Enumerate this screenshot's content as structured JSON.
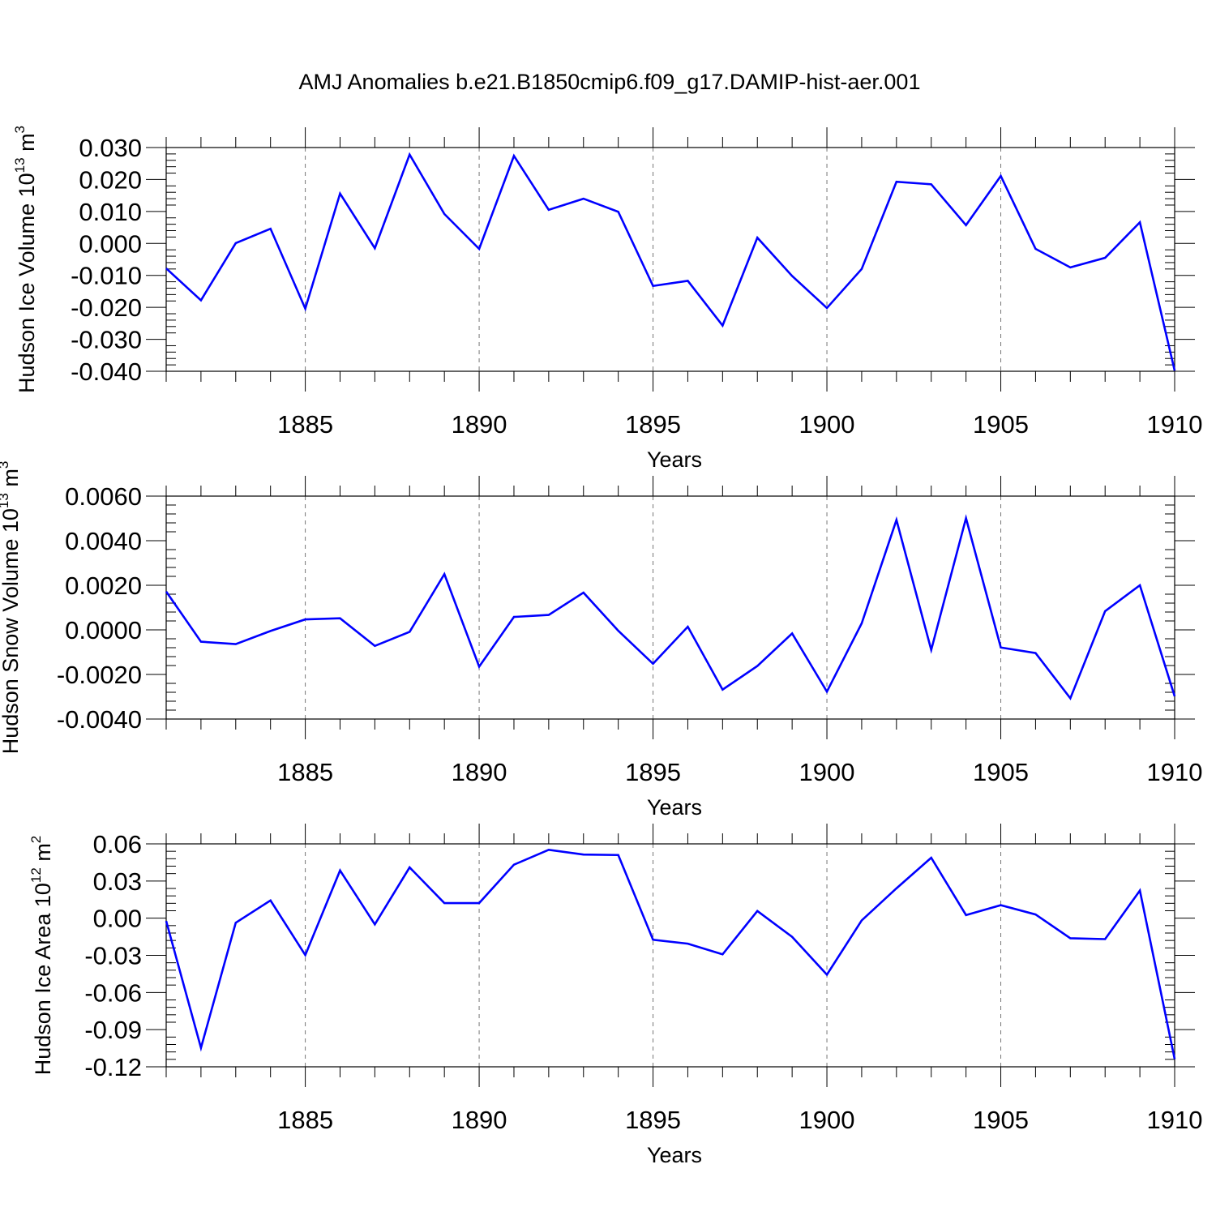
{
  "title": "AMJ Anomalies b.e21.B1850cmip6.f09_g17.DAMIP-hist-aer.001",
  "chart_data": [
    {
      "type": "line",
      "ylabel": {
        "text": "Hudson Ice Volume 10",
        "exp": "13",
        "unit": " m",
        "unit_exp": "3"
      },
      "xlabel": "Years",
      "xlim": [
        1881,
        1910
      ],
      "ylim": [
        -0.04,
        0.03
      ],
      "yticks": [
        "0.030",
        "0.020",
        "0.010",
        "0.000",
        "-0.010",
        "-0.020",
        "-0.030",
        "-0.040"
      ],
      "ytick_values": [
        0.03,
        0.02,
        0.01,
        0.0,
        -0.01,
        -0.02,
        -0.03,
        -0.04
      ],
      "xticks": [
        "1885",
        "1890",
        "1895",
        "1900",
        "1905",
        "1910"
      ],
      "xtick_values": [
        1885,
        1890,
        1895,
        1900,
        1905,
        1910
      ],
      "grid_x": [
        1885,
        1890,
        1895,
        1900,
        1905
      ],
      "series": [
        {
          "name": "Hudson Ice Volume",
          "color": "#0000ff",
          "x": [
            1881,
            1882,
            1883,
            1884,
            1885,
            1886,
            1887,
            1888,
            1889,
            1890,
            1891,
            1892,
            1893,
            1894,
            1895,
            1896,
            1897,
            1898,
            1899,
            1900,
            1901,
            1902,
            1903,
            1904,
            1905,
            1906,
            1907,
            1908,
            1909,
            1910
          ],
          "values": [
            -0.0078,
            -0.0178,
            0.0001,
            0.0046,
            -0.0204,
            0.0156,
            -0.0015,
            0.0278,
            0.0092,
            -0.0017,
            0.0274,
            0.0105,
            0.014,
            0.0099,
            -0.0133,
            -0.0117,
            -0.0257,
            0.0018,
            -0.0102,
            -0.0202,
            -0.008,
            0.0193,
            0.0185,
            0.0057,
            0.0211,
            -0.0017,
            -0.0075,
            -0.0045,
            0.0066,
            -0.0398
          ]
        }
      ]
    },
    {
      "type": "line",
      "ylabel": {
        "text": "Hudson Snow Volume 10",
        "exp": "13",
        "unit": " m",
        "unit_exp": "3"
      },
      "xlabel": "Years",
      "xlim": [
        1881,
        1910
      ],
      "ylim": [
        -0.004,
        0.006
      ],
      "yticks": [
        "0.0060",
        "0.0040",
        "0.0020",
        "0.0000",
        "-0.0020",
        "-0.0040"
      ],
      "ytick_values": [
        0.006,
        0.004,
        0.002,
        0.0,
        -0.002,
        -0.004
      ],
      "xticks": [
        "1885",
        "1890",
        "1895",
        "1900",
        "1905",
        "1910"
      ],
      "xtick_values": [
        1885,
        1890,
        1895,
        1900,
        1905,
        1910
      ],
      "grid_x": [
        1885,
        1890,
        1895,
        1900,
        1905
      ],
      "series": [
        {
          "name": "Hudson Snow Volume",
          "color": "#0000ff",
          "x": [
            1881,
            1882,
            1883,
            1884,
            1885,
            1886,
            1887,
            1888,
            1889,
            1890,
            1891,
            1892,
            1893,
            1894,
            1895,
            1896,
            1897,
            1898,
            1899,
            1900,
            1901,
            1902,
            1903,
            1904,
            1905,
            1906,
            1907,
            1908,
            1909,
            1910
          ],
          "values": [
            0.00172,
            -0.00053,
            -0.00064,
            -5e-05,
            0.00047,
            0.00052,
            -0.00072,
            -9e-05,
            0.0025,
            -0.00165,
            0.00058,
            0.00067,
            0.00167,
            -4e-05,
            -0.00152,
            0.00014,
            -0.00268,
            -0.00162,
            -0.00016,
            -0.00277,
            0.00029,
            0.00493,
            -0.0009,
            0.00501,
            -0.00079,
            -0.00104,
            -0.00307,
            0.00084,
            0.002,
            -0.00298
          ]
        }
      ]
    },
    {
      "type": "line",
      "ylabel": {
        "text": "Hudson Ice Area 10",
        "exp": "12",
        "unit": " m",
        "unit_exp": "2"
      },
      "xlabel": "Years",
      "xlim": [
        1881,
        1910
      ],
      "ylim": [
        -0.12,
        0.06
      ],
      "yticks": [
        "0.06",
        "0.03",
        "0.00",
        "-0.03",
        "-0.06",
        "-0.09",
        "-0.12"
      ],
      "ytick_values": [
        0.06,
        0.03,
        0.0,
        -0.03,
        -0.06,
        -0.09,
        -0.12
      ],
      "xticks": [
        "1885",
        "1890",
        "1895",
        "1900",
        "1905",
        "1910"
      ],
      "xtick_values": [
        1885,
        1890,
        1895,
        1900,
        1905,
        1910
      ],
      "grid_x": [
        1885,
        1890,
        1895,
        1900,
        1905
      ],
      "series": [
        {
          "name": "Hudson Ice Area",
          "color": "#0000ff",
          "x": [
            1881,
            1882,
            1883,
            1884,
            1885,
            1886,
            1887,
            1888,
            1889,
            1890,
            1891,
            1892,
            1893,
            1894,
            1895,
            1896,
            1897,
            1898,
            1899,
            1900,
            1901,
            1902,
            1903,
            1904,
            1905,
            1906,
            1907,
            1908,
            1909,
            1910
          ],
          "values": [
            -0.0023,
            -0.1047,
            -0.0037,
            0.0143,
            -0.0298,
            0.0385,
            -0.005,
            0.041,
            0.0122,
            0.0122,
            0.0432,
            0.0552,
            0.0514,
            0.051,
            -0.0174,
            -0.0206,
            -0.0292,
            0.0058,
            -0.0151,
            -0.0456,
            -0.0018,
            0.0241,
            0.0488,
            0.0025,
            0.0105,
            0.003,
            -0.0162,
            -0.0169,
            0.0223,
            -0.1138
          ]
        }
      ]
    }
  ]
}
